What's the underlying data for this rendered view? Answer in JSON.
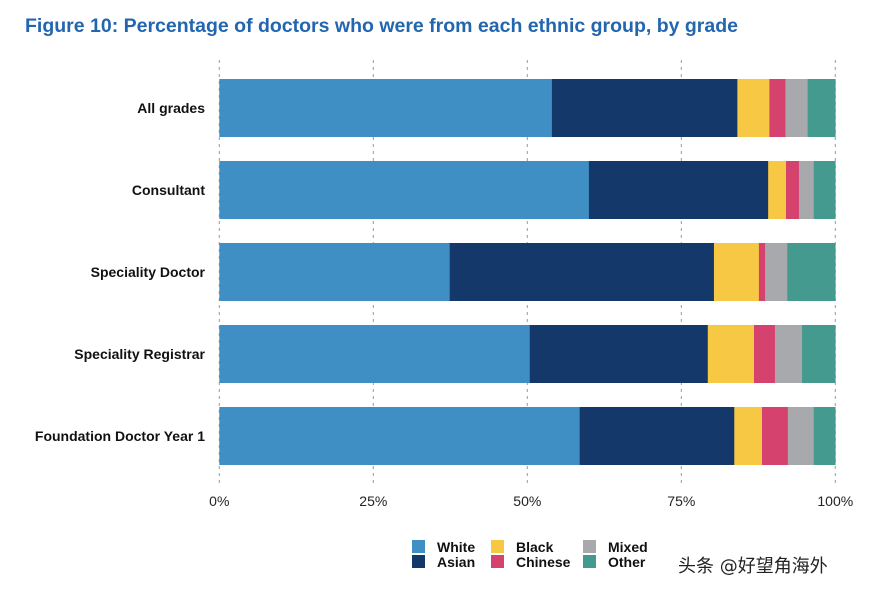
{
  "chart_data": {
    "type": "bar",
    "orientation": "horizontal",
    "stacked": true,
    "title": "Figure 10: Percentage of doctors who were from each ethnic group, by grade",
    "categories": [
      "All grades",
      "Consultant",
      "Speciality Doctor",
      "Speciality Registrar",
      "Foundation Doctor Year 1"
    ],
    "series": [
      {
        "name": "White",
        "color": "#3f8ec4",
        "values": [
          54.0,
          60.0,
          37.4,
          50.4,
          58.5
        ]
      },
      {
        "name": "Asian",
        "color": "#15386b",
        "values": [
          30.1,
          29.1,
          42.9,
          28.9,
          25.1
        ]
      },
      {
        "name": "Black",
        "color": "#f6c843",
        "values": [
          5.2,
          2.9,
          7.3,
          7.5,
          4.5
        ]
      },
      {
        "name": "Chinese",
        "color": "#d6426e",
        "values": [
          2.6,
          2.1,
          1.0,
          3.4,
          4.2
        ]
      },
      {
        "name": "Mixed",
        "color": "#a7a9ac",
        "values": [
          3.6,
          2.4,
          3.6,
          4.4,
          4.2
        ]
      },
      {
        "name": "Other",
        "color": "#459a8f",
        "values": [
          4.5,
          3.5,
          7.8,
          5.4,
          3.5
        ]
      }
    ],
    "xlim": [
      0,
      100
    ],
    "xticks": [
      "0%",
      "25%",
      "50%",
      "75%",
      "100%"
    ],
    "grid": "vertical dashed",
    "legend": "bottom-right"
  },
  "watermark": "头条 @好望角海外"
}
